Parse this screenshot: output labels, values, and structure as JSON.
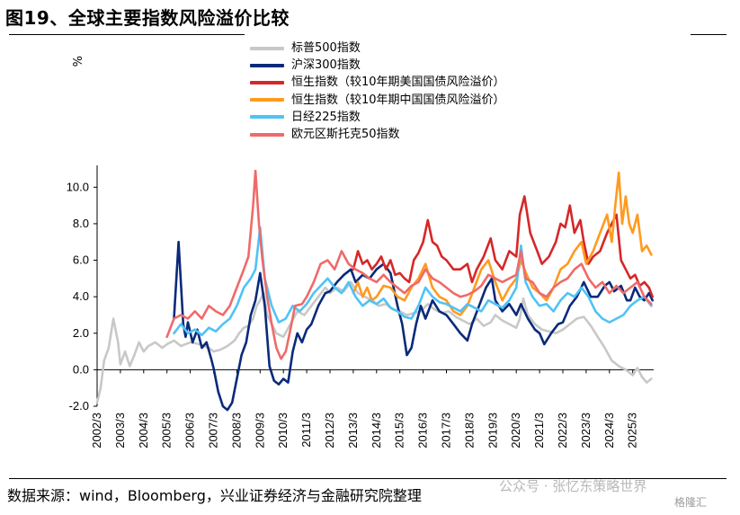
{
  "figure": {
    "title": "图19、全球主要指数风险溢价比较",
    "source": "数据来源：wind，Bloomberg，兴业证券经济与金融研究院整理",
    "watermark": "公众号 · 张忆东策略世界",
    "corner_logo": "格隆汇"
  },
  "chart_data": {
    "type": "line",
    "ylabel": "%",
    "ylim": [
      -2.0,
      11.0
    ],
    "yticks": [
      "10.0",
      "8.0",
      "6.0",
      "4.0",
      "2.0",
      "0.0",
      "-2.0"
    ],
    "xticks": [
      "2002/3",
      "2003/3",
      "2004/3",
      "2005/3",
      "2006/3",
      "2007/3",
      "2008/3",
      "2009/3",
      "2010/3",
      "2011/3",
      "2012/3",
      "2013/3",
      "2014/3",
      "2015/3",
      "2016/3",
      "2017/3",
      "2018/3",
      "2019/3",
      "2020/3",
      "2021/3",
      "2022/3",
      "2023/3",
      "2024/3",
      "2025/3"
    ],
    "xlim": [
      2002.0,
      2025.9
    ],
    "grid": false,
    "legend_position": "top-center",
    "series": [
      {
        "name": "标普500指数",
        "color": "#c8c8c8",
        "x": [
          2002.0,
          2002.15,
          2002.3,
          2002.5,
          2002.7,
          2002.9,
          2003.0,
          2003.2,
          2003.4,
          2003.6,
          2003.8,
          2004.0,
          2004.2,
          2004.5,
          2004.8,
          2005.0,
          2005.3,
          2005.6,
          2006.0,
          2006.4,
          2006.8,
          2007.0,
          2007.3,
          2007.6,
          2007.9,
          2008.1,
          2008.3,
          2008.5,
          2008.7,
          2008.85,
          2009.0,
          2009.15,
          2009.3,
          2009.5,
          2009.7,
          2010.0,
          2010.3,
          2010.6,
          2010.9,
          2011.2,
          2011.5,
          2011.8,
          2012.0,
          2012.3,
          2012.6,
          2012.9,
          2013.2,
          2013.5,
          2013.8,
          2014.1,
          2014.4,
          2014.7,
          2015.0,
          2015.3,
          2015.6,
          2015.9,
          2016.2,
          2016.5,
          2016.8,
          2017.1,
          2017.4,
          2017.7,
          2018.0,
          2018.3,
          2018.6,
          2018.9,
          2019.1,
          2019.4,
          2019.7,
          2020.0,
          2020.15,
          2020.3,
          2020.5,
          2020.8,
          2021.1,
          2021.4,
          2021.7,
          2022.0,
          2022.3,
          2022.6,
          2022.9,
          2023.2,
          2023.5,
          2023.8,
          2024.1,
          2024.4,
          2024.7,
          2025.0,
          2025.2,
          2025.4,
          2025.6,
          2025.8
        ],
        "y": [
          -1.8,
          -1.0,
          0.5,
          1.2,
          2.8,
          1.5,
          0.3,
          1.0,
          0.2,
          0.8,
          1.5,
          1.0,
          1.3,
          1.5,
          1.2,
          1.4,
          1.6,
          1.3,
          1.5,
          1.4,
          1.2,
          1.0,
          1.1,
          1.3,
          1.6,
          2.0,
          2.3,
          2.4,
          2.8,
          3.5,
          3.8,
          4.2,
          3.0,
          2.5,
          2.0,
          1.8,
          2.5,
          3.2,
          3.0,
          3.5,
          4.0,
          4.5,
          4.2,
          4.5,
          4.3,
          4.8,
          4.2,
          4.0,
          3.8,
          3.5,
          3.6,
          3.3,
          3.2,
          3.0,
          3.1,
          3.2,
          3.6,
          3.3,
          3.1,
          3.2,
          2.9,
          2.7,
          2.5,
          2.8,
          2.4,
          2.6,
          3.0,
          2.7,
          2.5,
          2.3,
          2.8,
          3.9,
          3.0,
          2.5,
          2.2,
          2.1,
          2.0,
          2.2,
          2.5,
          2.8,
          2.9,
          2.4,
          1.8,
          1.2,
          0.5,
          0.2,
          0.0,
          -0.3,
          0.1,
          -0.4,
          -0.7,
          -0.5
        ]
      },
      {
        "name": "沪深300指数",
        "color": "#0a2a7a",
        "x": [
          2005.3,
          2005.5,
          2005.7,
          2005.8,
          2005.9,
          2006.1,
          2006.3,
          2006.5,
          2006.7,
          2006.9,
          2007.0,
          2007.2,
          2007.4,
          2007.6,
          2007.8,
          2008.0,
          2008.2,
          2008.4,
          2008.6,
          2008.8,
          2009.0,
          2009.2,
          2009.4,
          2009.6,
          2009.8,
          2010.0,
          2010.2,
          2010.4,
          2010.6,
          2010.8,
          2011.0,
          2011.2,
          2011.5,
          2011.8,
          2012.0,
          2012.3,
          2012.6,
          2012.9,
          2013.1,
          2013.4,
          2013.7,
          2014.0,
          2014.3,
          2014.6,
          2014.9,
          2015.1,
          2015.3,
          2015.5,
          2015.7,
          2015.9,
          2016.1,
          2016.4,
          2016.7,
          2017.0,
          2017.3,
          2017.6,
          2017.9,
          2018.1,
          2018.4,
          2018.7,
          2018.95,
          2019.1,
          2019.4,
          2019.7,
          2020.0,
          2020.2,
          2020.5,
          2020.8,
          2021.0,
          2021.2,
          2021.5,
          2021.8,
          2022.0,
          2022.3,
          2022.6,
          2022.9,
          2023.2,
          2023.5,
          2023.8,
          2024.0,
          2024.2,
          2024.5,
          2024.75,
          2024.9,
          2025.1,
          2025.3,
          2025.5,
          2025.7,
          2025.85
        ],
        "y": [
          2.8,
          7.0,
          2.5,
          1.8,
          2.6,
          1.5,
          2.2,
          1.2,
          1.5,
          0.6,
          0.1,
          -1.2,
          -2.0,
          -2.2,
          -1.8,
          -0.5,
          0.8,
          1.5,
          3.0,
          3.8,
          5.3,
          3.5,
          0.2,
          -0.6,
          -0.8,
          -0.5,
          -0.7,
          1.0,
          2.0,
          1.5,
          2.2,
          2.5,
          3.5,
          4.2,
          4.3,
          4.8,
          5.2,
          5.5,
          4.8,
          5.2,
          5.0,
          5.5,
          5.8,
          5.3,
          3.5,
          2.5,
          0.8,
          1.2,
          2.5,
          3.5,
          2.8,
          3.8,
          3.2,
          3.0,
          2.5,
          2.0,
          1.6,
          2.5,
          3.5,
          4.5,
          5.0,
          3.8,
          3.2,
          3.6,
          3.0,
          3.6,
          2.8,
          2.2,
          2.0,
          1.4,
          2.0,
          2.5,
          2.6,
          3.5,
          4.0,
          4.8,
          4.0,
          4.0,
          4.6,
          4.8,
          4.3,
          4.6,
          3.8,
          3.8,
          4.5,
          4.0,
          3.8,
          4.2,
          3.8
        ]
      },
      {
        "name": "恒生指数（较10年期美国国债风险溢价）",
        "color": "#d62728",
        "x": [
          2013.0,
          2013.2,
          2013.4,
          2013.6,
          2013.8,
          2014.0,
          2014.2,
          2014.4,
          2014.6,
          2014.8,
          2015.0,
          2015.2,
          2015.4,
          2015.6,
          2015.8,
          2016.0,
          2016.2,
          2016.4,
          2016.6,
          2016.8,
          2017.0,
          2017.3,
          2017.6,
          2017.9,
          2018.1,
          2018.3,
          2018.6,
          2018.9,
          2019.1,
          2019.4,
          2019.7,
          2020.0,
          2020.15,
          2020.35,
          2020.6,
          2020.9,
          2021.1,
          2021.4,
          2021.7,
          2021.9,
          2022.1,
          2022.3,
          2022.5,
          2022.75,
          2022.9,
          2023.1,
          2023.3,
          2023.6,
          2023.9,
          2024.1,
          2024.3,
          2024.5,
          2024.7,
          2024.9,
          2025.1,
          2025.3,
          2025.5,
          2025.7,
          2025.85
        ],
        "y": [
          5.5,
          6.5,
          5.8,
          6.0,
          5.5,
          5.8,
          6.2,
          5.5,
          6.0,
          5.2,
          5.3,
          5.0,
          4.8,
          6.0,
          6.4,
          7.0,
          8.2,
          7.0,
          6.8,
          6.2,
          6.0,
          5.5,
          5.5,
          5.8,
          4.8,
          5.5,
          6.2,
          7.2,
          6.0,
          5.5,
          6.5,
          6.2,
          8.5,
          9.5,
          7.5,
          6.5,
          5.8,
          6.2,
          7.0,
          8.0,
          7.8,
          9.0,
          7.5,
          8.2,
          7.0,
          5.8,
          6.2,
          6.5,
          7.5,
          8.0,
          8.5,
          6.0,
          5.5,
          5.0,
          5.2,
          4.6,
          4.8,
          4.5,
          4.0
        ]
      },
      {
        "name": "恒生指数（较10年期中国国债风险溢价）",
        "color": "#ff9a1f",
        "x": [
          2013.0,
          2013.2,
          2013.4,
          2013.6,
          2013.8,
          2014.0,
          2014.3,
          2014.6,
          2014.9,
          2015.2,
          2015.5,
          2015.8,
          2016.1,
          2016.4,
          2016.7,
          2017.0,
          2017.3,
          2017.6,
          2017.9,
          2018.2,
          2018.5,
          2018.8,
          2019.1,
          2019.4,
          2019.7,
          2020.0,
          2020.2,
          2020.45,
          2020.7,
          2021.0,
          2021.3,
          2021.6,
          2021.9,
          2022.2,
          2022.5,
          2022.8,
          2023.0,
          2023.3,
          2023.6,
          2023.9,
          2024.1,
          2024.25,
          2024.4,
          2024.55,
          2024.7,
          2024.85,
          2025.0,
          2025.2,
          2025.4,
          2025.6,
          2025.8
        ],
        "y": [
          4.2,
          4.8,
          4.0,
          4.5,
          3.8,
          4.0,
          4.6,
          4.5,
          4.0,
          3.8,
          4.5,
          5.0,
          5.8,
          4.5,
          4.0,
          3.8,
          3.2,
          3.0,
          3.5,
          4.5,
          5.5,
          6.0,
          4.8,
          3.8,
          4.5,
          5.0,
          6.0,
          5.2,
          4.5,
          4.2,
          3.8,
          4.5,
          5.5,
          5.8,
          6.5,
          7.0,
          5.8,
          6.5,
          7.5,
          8.5,
          7.0,
          9.0,
          10.8,
          8.0,
          9.5,
          8.0,
          7.5,
          8.5,
          6.5,
          6.8,
          6.3
        ]
      },
      {
        "name": "日经225指数",
        "color": "#4fc3f7",
        "x": [
          2005.3,
          2005.6,
          2005.9,
          2006.2,
          2006.5,
          2006.8,
          2007.1,
          2007.4,
          2007.7,
          2008.0,
          2008.3,
          2008.6,
          2008.8,
          2009.0,
          2009.2,
          2009.5,
          2009.8,
          2010.1,
          2010.4,
          2010.7,
          2011.0,
          2011.3,
          2011.6,
          2011.9,
          2012.2,
          2012.5,
          2012.8,
          2013.1,
          2013.4,
          2013.7,
          2014.0,
          2014.3,
          2014.6,
          2014.9,
          2015.2,
          2015.5,
          2015.8,
          2016.1,
          2016.4,
          2016.7,
          2017.0,
          2017.3,
          2017.6,
          2017.9,
          2018.2,
          2018.5,
          2018.8,
          2019.1,
          2019.4,
          2019.7,
          2020.0,
          2020.2,
          2020.4,
          2020.7,
          2021.0,
          2021.3,
          2021.6,
          2021.9,
          2022.2,
          2022.5,
          2022.8,
          2023.1,
          2023.4,
          2023.7,
          2024.0,
          2024.3,
          2024.6,
          2024.9,
          2025.2,
          2025.5,
          2025.8
        ],
        "y": [
          2.0,
          2.5,
          2.0,
          2.2,
          1.9,
          2.3,
          2.1,
          2.5,
          2.8,
          3.5,
          4.5,
          5.0,
          5.5,
          7.8,
          5.0,
          3.5,
          2.6,
          2.8,
          3.5,
          3.2,
          3.6,
          4.2,
          4.6,
          5.0,
          4.5,
          4.2,
          4.8,
          4.0,
          3.5,
          3.8,
          3.6,
          3.9,
          3.4,
          3.2,
          2.9,
          2.8,
          3.5,
          4.5,
          4.0,
          3.7,
          3.6,
          3.4,
          3.2,
          3.6,
          3.4,
          3.2,
          3.8,
          3.6,
          3.4,
          3.8,
          4.5,
          6.8,
          4.8,
          4.0,
          3.5,
          3.6,
          3.2,
          3.8,
          4.2,
          4.0,
          4.5,
          4.0,
          3.2,
          2.8,
          2.6,
          2.8,
          3.0,
          3.5,
          3.8,
          4.0,
          3.5
        ]
      },
      {
        "name": "欧元区斯托克50指数",
        "color": "#ef6a6a",
        "x": [
          2005.0,
          2005.3,
          2005.6,
          2005.9,
          2006.2,
          2006.5,
          2006.8,
          2007.1,
          2007.4,
          2007.7,
          2008.0,
          2008.3,
          2008.5,
          2008.7,
          2008.8,
          2008.95,
          2009.1,
          2009.3,
          2009.5,
          2009.7,
          2009.9,
          2010.1,
          2010.3,
          2010.5,
          2010.8,
          2011.0,
          2011.3,
          2011.6,
          2011.9,
          2012.2,
          2012.5,
          2012.8,
          2013.1,
          2013.4,
          2013.7,
          2014.0,
          2014.3,
          2014.6,
          2014.9,
          2015.2,
          2015.5,
          2015.8,
          2016.1,
          2016.4,
          2016.7,
          2017.0,
          2017.3,
          2017.6,
          2017.9,
          2018.2,
          2018.5,
          2018.8,
          2019.1,
          2019.4,
          2019.7,
          2020.0,
          2020.2,
          2020.4,
          2020.7,
          2021.0,
          2021.3,
          2021.6,
          2021.9,
          2022.2,
          2022.5,
          2022.8,
          2023.1,
          2023.4,
          2023.7,
          2024.0,
          2024.3,
          2024.6,
          2024.9,
          2025.2,
          2025.5,
          2025.8
        ],
        "y": [
          1.8,
          2.8,
          3.0,
          2.8,
          3.2,
          2.8,
          3.5,
          3.2,
          3.0,
          3.5,
          4.5,
          5.5,
          6.2,
          9.0,
          10.9,
          8.0,
          6.0,
          4.0,
          2.5,
          1.2,
          0.6,
          1.0,
          2.2,
          3.5,
          3.6,
          4.0,
          4.8,
          5.8,
          6.0,
          5.5,
          6.5,
          5.8,
          5.5,
          5.3,
          5.0,
          4.8,
          5.2,
          4.8,
          4.5,
          4.2,
          4.6,
          4.8,
          5.5,
          5.0,
          4.8,
          4.5,
          4.2,
          4.0,
          4.1,
          4.3,
          4.6,
          5.2,
          5.0,
          4.8,
          5.0,
          5.2,
          6.5,
          5.0,
          4.8,
          4.2,
          4.0,
          4.5,
          4.8,
          5.0,
          5.5,
          5.8,
          5.0,
          4.5,
          4.8,
          4.2,
          4.6,
          4.2,
          4.5,
          4.8,
          4.0,
          3.6
        ]
      }
    ]
  }
}
